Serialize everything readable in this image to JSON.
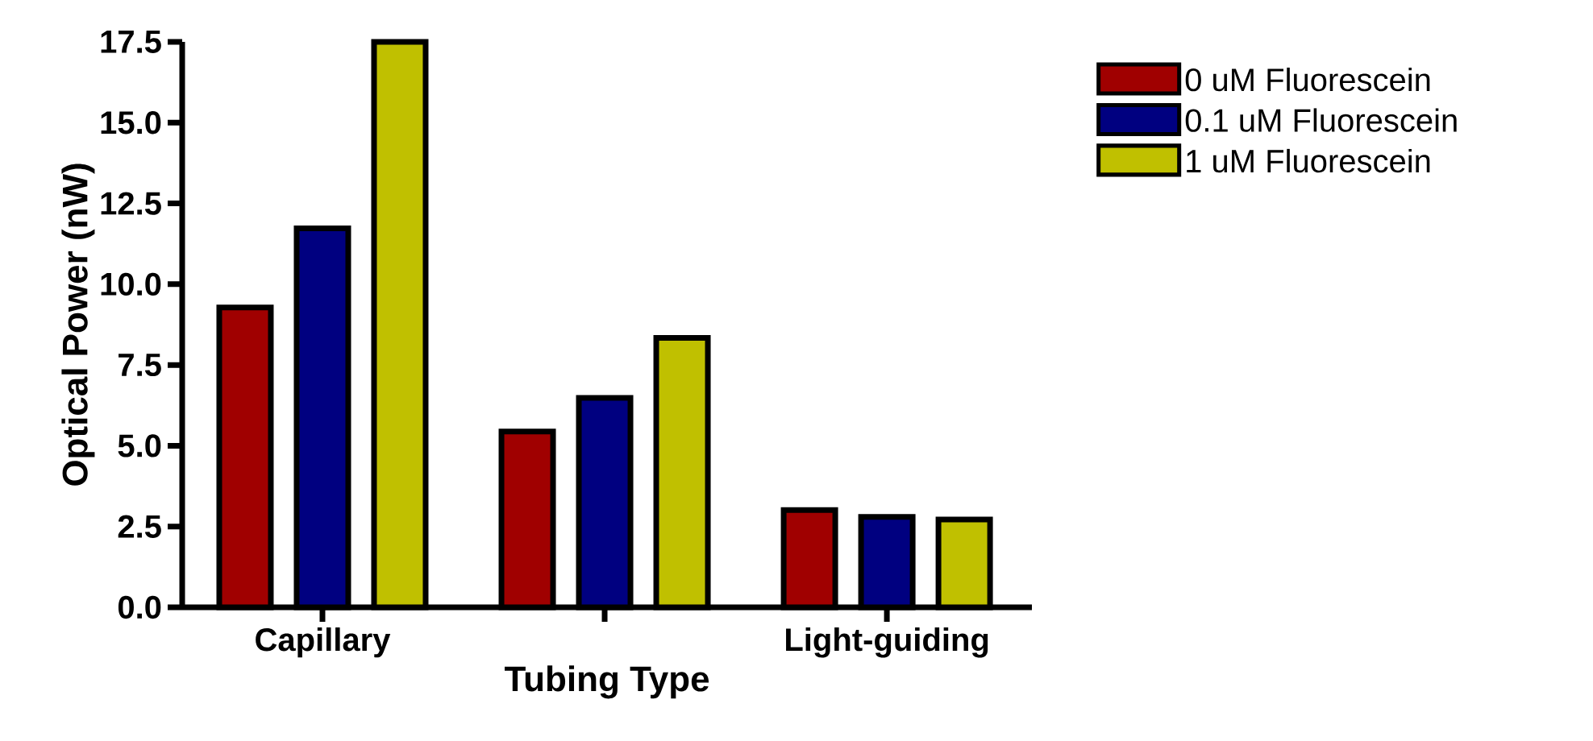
{
  "chart_data": {
    "type": "bar",
    "xlabel": "Tubing Type",
    "ylabel": "Optical Power (nW)",
    "categories": [
      "Capillary",
      null,
      "Light-guiding"
    ],
    "series": [
      {
        "name": "0 uM Fluorescein",
        "color": "#a00000",
        "values": [
          9.28,
          5.44,
          3.01
        ]
      },
      {
        "name": "0.1 uM Fluorescein",
        "color": "#000080",
        "values": [
          11.73,
          6.48,
          2.8
        ]
      },
      {
        "name": "1 uM Fluorescein",
        "color": "#c0c000",
        "values": [
          17.5,
          8.34,
          2.72
        ]
      }
    ],
    "ylim": [
      0,
      17.5
    ],
    "yticks": [
      {
        "value": 0,
        "label": "0.0"
      },
      2.5,
      {
        "value": 5,
        "label": "5.0"
      },
      7.5,
      {
        "value": 10,
        "label": "10.0"
      },
      12.5,
      {
        "value": 15,
        "label": "15.0"
      },
      17.5
    ],
    "grid": false,
    "legend": "right"
  }
}
